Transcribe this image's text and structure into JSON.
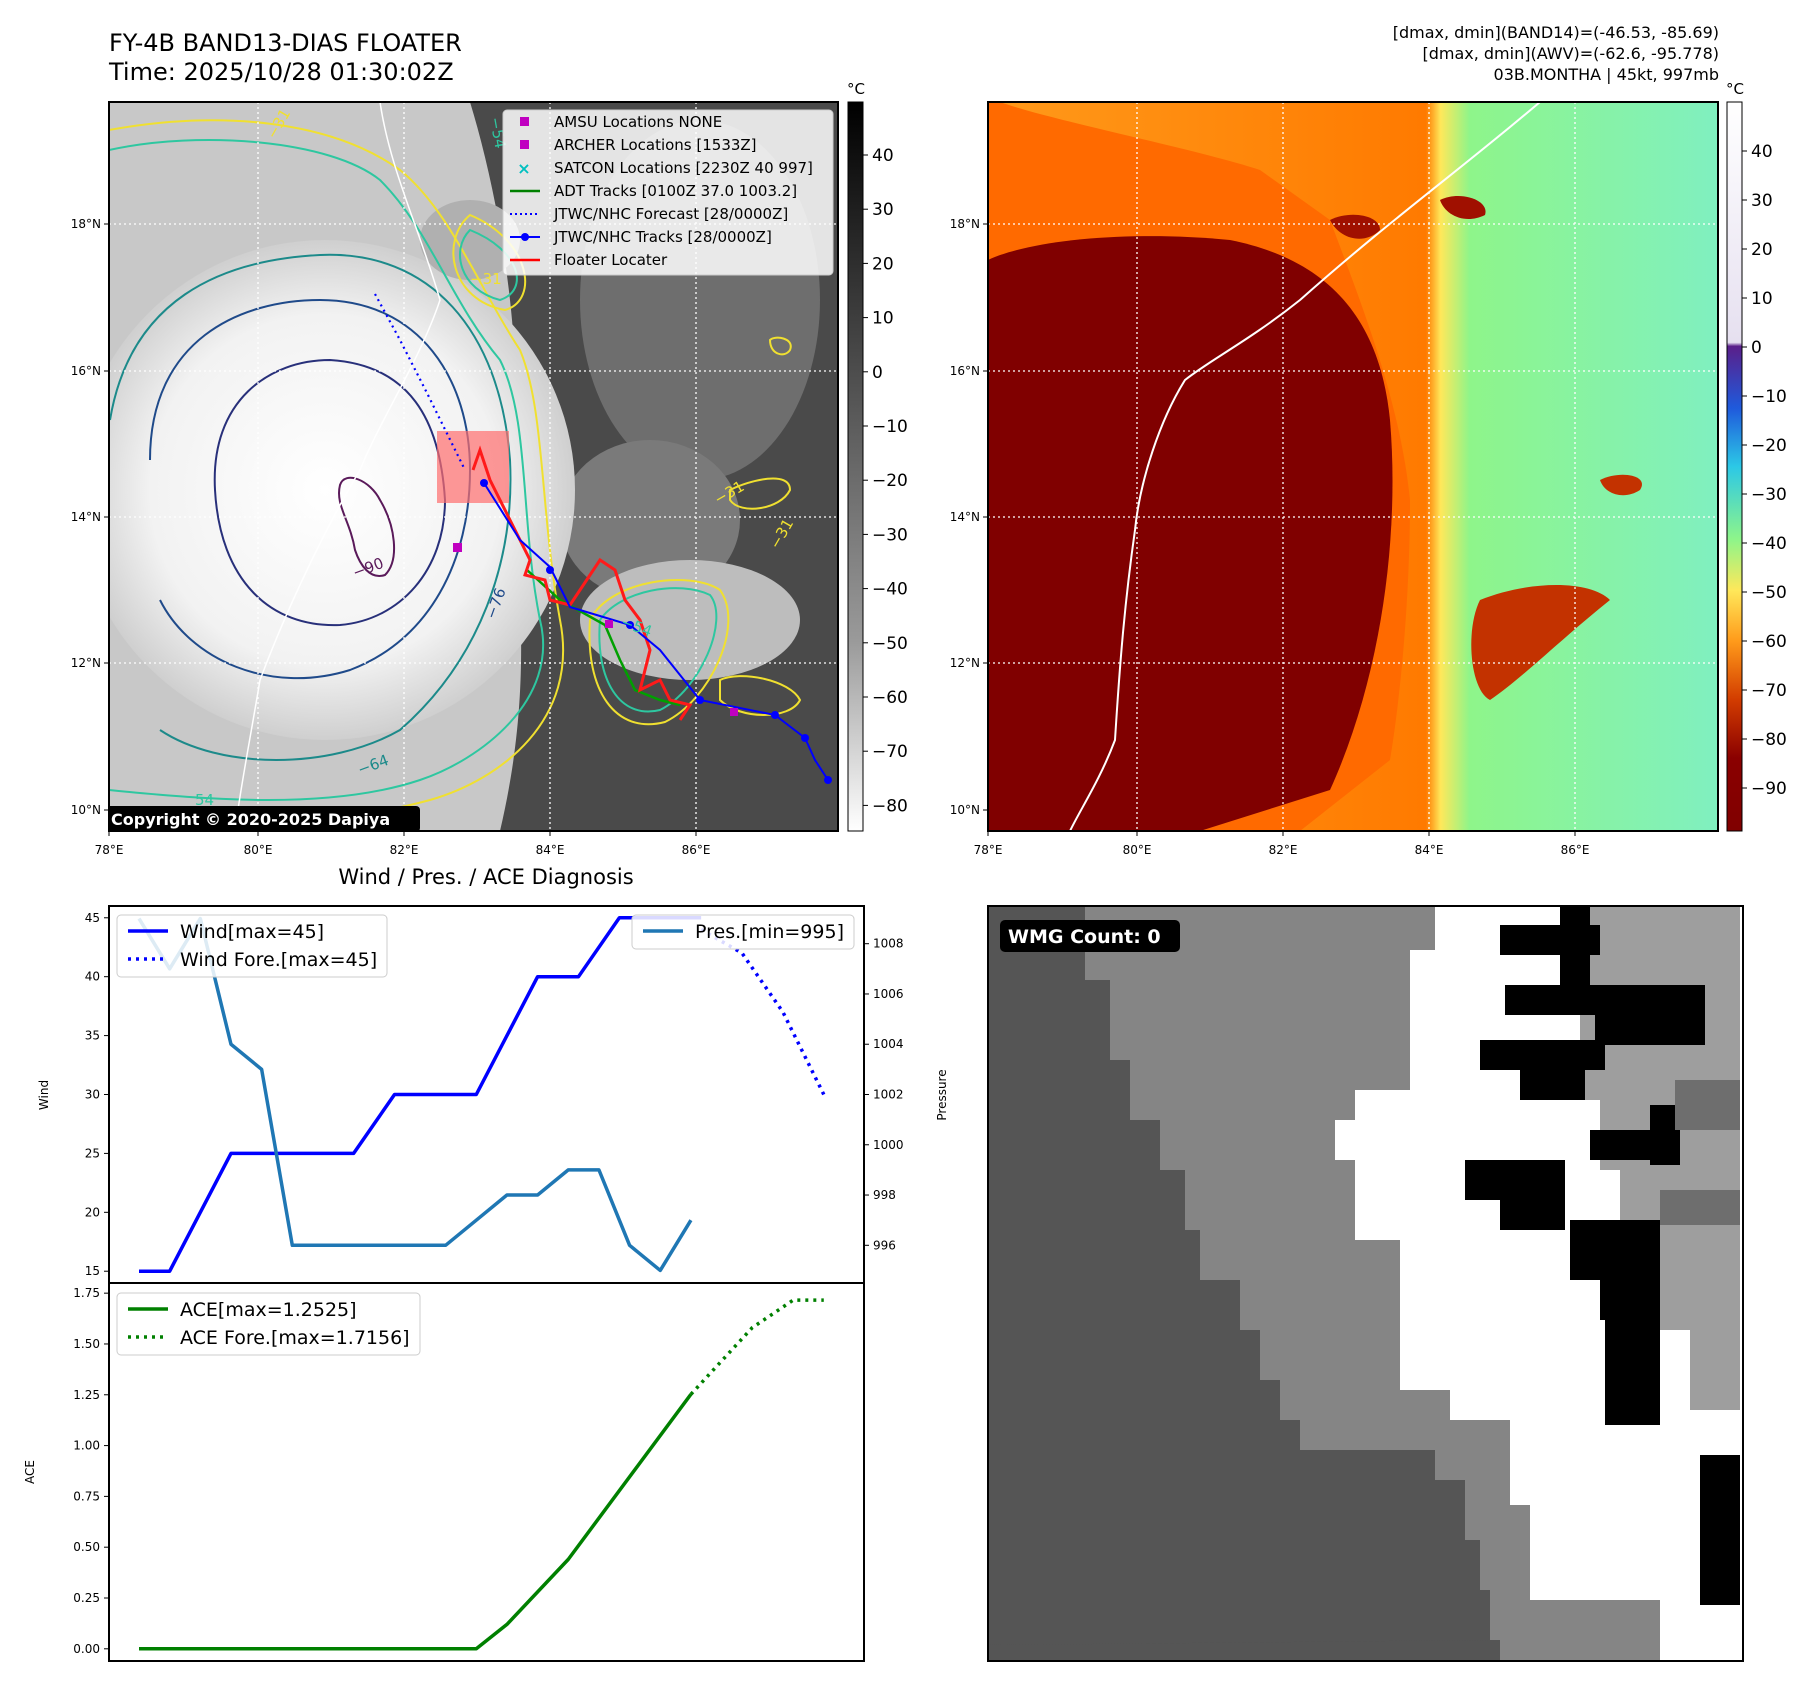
{
  "header": {
    "title_line1": "FY-4B BAND13-DIAS FLOATER",
    "title_line2": "Time: 2025/10/28 01:30:02Z",
    "info_line1": "[dmax, dmin](BAND14)=(-46.53, -85.69)",
    "info_line2": "[dmax, dmin](AWV)=(-62.6, -95.778)",
    "info_line3": "03B.MONTHA | 45kt, 997mb"
  },
  "map_axes": {
    "lon_ticks": [
      "78°E",
      "80°E",
      "82°E",
      "84°E",
      "86°E"
    ],
    "lat_ticks": [
      "18°N",
      "16°N",
      "14°N",
      "12°N",
      "10°N"
    ]
  },
  "ir_panel": {
    "colorbar_unit": "°C",
    "colorbar_ticks": [
      "40",
      "30",
      "20",
      "10",
      "0",
      "−10",
      "−20",
      "−30",
      "−40",
      "−50",
      "−60",
      "−70",
      "−80"
    ],
    "copyright": "Copyright © 2020-2025 Dapiya",
    "contour_labels": [
      "−90",
      "−76",
      "−64",
      "−54",
      "−31",
      "−31",
      "−31",
      "54",
      "−54",
      "−31"
    ],
    "legend": [
      {
        "label": "AMSU Locations NONE",
        "kind": "square",
        "color": "#c000c0"
      },
      {
        "label": "ARCHER Locations [1533Z]",
        "kind": "square",
        "color": "#c000c0"
      },
      {
        "label": "SATCON Locations [2230Z 40 997]",
        "kind": "x",
        "color": "#00c0c0"
      },
      {
        "label": "ADT Tracks [0100Z 37.0 1003.2]",
        "kind": "line",
        "color": "#008000"
      },
      {
        "label": "JTWC/NHC Forecast [28/0000Z]",
        "kind": "dotted",
        "color": "#0000ff"
      },
      {
        "label": "JTWC/NHC Tracks [28/0000Z]",
        "kind": "marker-line",
        "color": "#0000ff"
      },
      {
        "label": "Floater Locater",
        "kind": "line",
        "color": "#ff0000"
      }
    ]
  },
  "awv_panel": {
    "colorbar_unit": "°C",
    "colorbar_ticks": [
      "40",
      "30",
      "20",
      "10",
      "0",
      "−10",
      "−20",
      "−30",
      "−40",
      "−50",
      "−60",
      "−70",
      "−80",
      "−90"
    ]
  },
  "wmg_panel": {
    "badge": "WMG Count: 0"
  },
  "colors": {
    "wind": "#0000ff",
    "pressure": "#1f77b4",
    "ace": "#008000",
    "awv_core": "#800000"
  },
  "chart_data": [
    {
      "type": "line",
      "title": "Wind / Pres. / ACE Diagnosis",
      "ylabel": "Wind",
      "y2label": "Pressure",
      "ylim": [
        14,
        46
      ],
      "y2lim": [
        994.5,
        1009.5
      ],
      "xlim": [
        0,
        34
      ],
      "series": [
        {
          "name": "Wind[max=45]",
          "axis": "left",
          "style": "solid",
          "x": [
            0,
            1.5,
            4.5,
            10.5,
            12.5,
            16.5,
            19.5,
            21.5,
            23.5,
            27.5
          ],
          "y": [
            15,
            15,
            25,
            25,
            30,
            30,
            40,
            40,
            45,
            45
          ]
        },
        {
          "name": "Wind Fore.[max=45]",
          "axis": "left",
          "style": "dotted",
          "x": [
            27.5,
            29.5,
            31.5,
            33.5
          ],
          "y": [
            44,
            42,
            37,
            30
          ]
        },
        {
          "name": "Pres.[min=995]",
          "axis": "right",
          "style": "solid",
          "x": [
            0,
            1.5,
            3,
            4.5,
            6,
            7.5,
            9,
            10.5,
            12,
            13.5,
            15,
            16.5,
            18,
            19.5,
            21,
            22.5,
            24,
            25.5,
            27
          ],
          "y": [
            1009,
            1007,
            1009,
            1004,
            1003,
            996,
            996,
            996,
            996,
            996,
            996,
            997,
            998,
            998,
            999,
            999,
            996,
            995,
            997
          ]
        }
      ]
    },
    {
      "type": "line",
      "ylabel": "ACE",
      "ylim": [
        -0.06,
        1.8
      ],
      "yticks": [
        0.0,
        0.25,
        0.5,
        0.75,
        1.0,
        1.25,
        1.5,
        1.75
      ],
      "xlim": [
        0,
        34
      ],
      "series": [
        {
          "name": "ACE[max=1.2525]",
          "style": "solid",
          "x": [
            0,
            16.5,
            18,
            21,
            27
          ],
          "y": [
            0,
            0,
            0.12,
            0.44,
            1.2525
          ]
        },
        {
          "name": "ACE Fore.[max=1.7156]",
          "style": "dotted",
          "x": [
            27,
            30,
            32,
            33.5
          ],
          "y": [
            1.2525,
            1.58,
            1.7156,
            1.7156
          ]
        }
      ]
    }
  ]
}
